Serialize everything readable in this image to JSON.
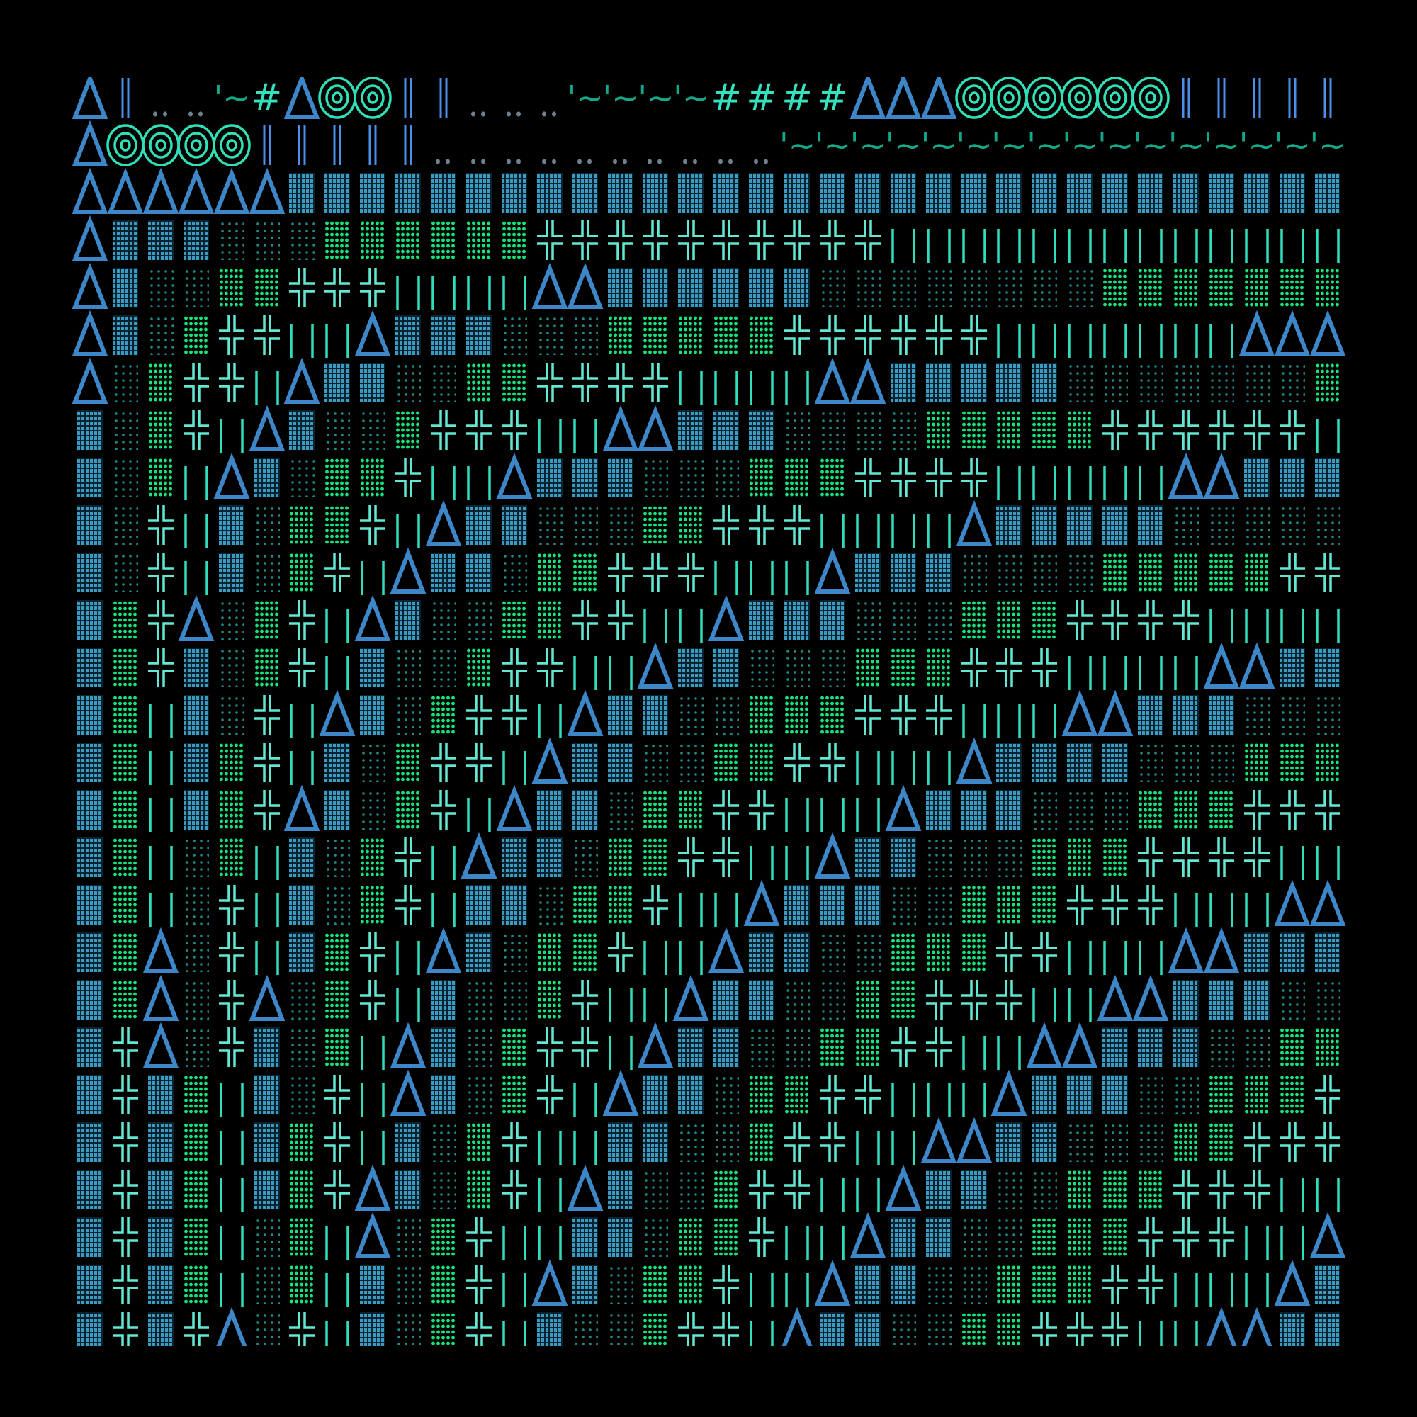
{
  "colors": {
    "background": "#000000",
    "triangle": "#3d87c8",
    "rings": "#2fe0b8",
    "double_bar": "#4b8fe8",
    "dots": "#6f8090",
    "tilde": "#15a888",
    "hash": "#34e0bd",
    "dense_block": "#3b9cc2",
    "sparse_dots": "#1e8a88",
    "green_dots": "#14e27a",
    "cross": "#62e8d2",
    "bar": "#30dcbc"
  },
  "symbols": {
    "A": {
      "name": "triangle-icon"
    },
    "O": {
      "name": "concentric-rings-icon"
    },
    "H": {
      "name": "double-bar-icon"
    },
    "D": {
      "name": "dots-icon"
    },
    "T": {
      "name": "tilde-glyph",
      "text": "'~"
    },
    "P": {
      "name": "hash-glyph",
      "text": "#"
    },
    "B": {
      "name": "dense-block-icon"
    },
    "S": {
      "name": "sparse-dots-icon"
    },
    "G": {
      "name": "green-dots-icon"
    },
    "X": {
      "name": "double-cross-icon"
    },
    "I": {
      "name": "vertical-bar-icon"
    }
  },
  "rows": [
    "AHDDTPAOOHHDDDTTTTPPPPAAAOOOOOOHHHHH",
    "AOOOOHHHHHDDDDDDDDDDTTTTTTTTTTTTTTTT",
    "AAAAAABBBBBBBBBBBBBBBBBBBBBBBBBBBBBB",
    "ABBBSSSGGGGGGXXXXXXXXXXIIIIIIIIIIIII",
    "ABSSGGXXXIIIIAABBBBBBSSSSSSSSGGGGGGG",
    "ABSGXXIIABBBSSSGGGGGXXXXXXIIIIIIIAAA",
    "ASGXXIABBSSGGXXXXIIIIAABBBBBSSSSSSSG",
    "BSGXIABSSGXXXIIAABBBSSSSGGGGGXXXXXXI",
    "BSGIABSGGXIIABBBSSSGGGXXXXIIIIIAABBB",
    "BSXIBSGGXIABBSSSGGXXXIIIIABBBBBSSSSS",
    "BSXIBSGXIABBSGGXXXIIIABBBSSSSGGGGGXX",
    "BGXASGXIABSSGGXXIIABBBSSSGGGXXXXIIII",
    "BGXBSGXIBSSGXXIIABBSSSGGGXXXIIIIAABB",
    "BGIBSXIABSGXXIABBSSGGGXXXIIIAABBBSSS",
    "BGIBGXIBSGXXIABBSSGGXXIIIABBBBSSSGGG",
    "BGIBGXABSGXIABBSGGXXIIIABBBSSSGGGXXX",
    "BGISGIBSGXIABBSGGXXIIABBSSSGGGXXXXII",
    "BGISXIBSGXIBBSGGXIIABBBSSGGGXXXIIIAA",
    "BGASXIBGXIABSGGXIIABBSSGGGXXIIIAABBB",
    "BGASXASGXIBSSGXIIABBSSGGXXXIIAABBBSS",
    "BXASXBSGIABSGXXIABBSSGGXXIIAABBBSSGG",
    "BXBGIBSXIABSGXIABBSGGXXIIIABBBSSGGGX",
    "BXBGIBGXIBSGXIIBBSSGXXIIAABBSSSGGXXX",
    "BXBGIBGXABSGXIABSSGXXIIABBSSGGGXXXII",
    "BXBGISGIASGXIIBBSGGXIIABBSSGGGXXXIIA",
    "BXBGISGIBSGXIABSGGXIIABBSSGGGXXIIIAB",
    "BXBXASXIBSGXIBSSGXXIABBSSGGXXXIIAABB"
  ]
}
